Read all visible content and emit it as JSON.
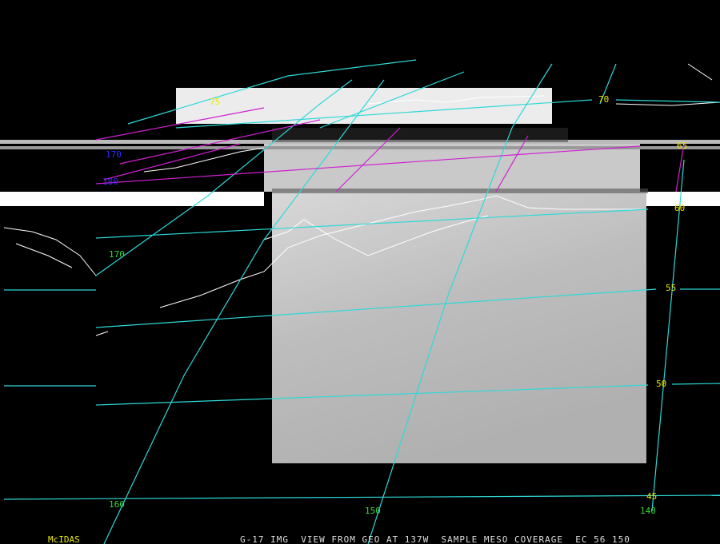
{
  "map": {
    "top_label": "75",
    "lat_labels": [
      "70",
      "65",
      "60",
      "55",
      "50",
      "45"
    ],
    "lon_labels": [
      "170",
      "160",
      "150",
      "140"
    ],
    "lon_labels_blue": [
      "170",
      "180"
    ],
    "footer": {
      "logo": "McIDAS",
      "caption": "G-17 IMG  VIEW FROM GEO AT 137W  SAMPLE MESO COVERAGE  EC 56 150"
    }
  }
}
